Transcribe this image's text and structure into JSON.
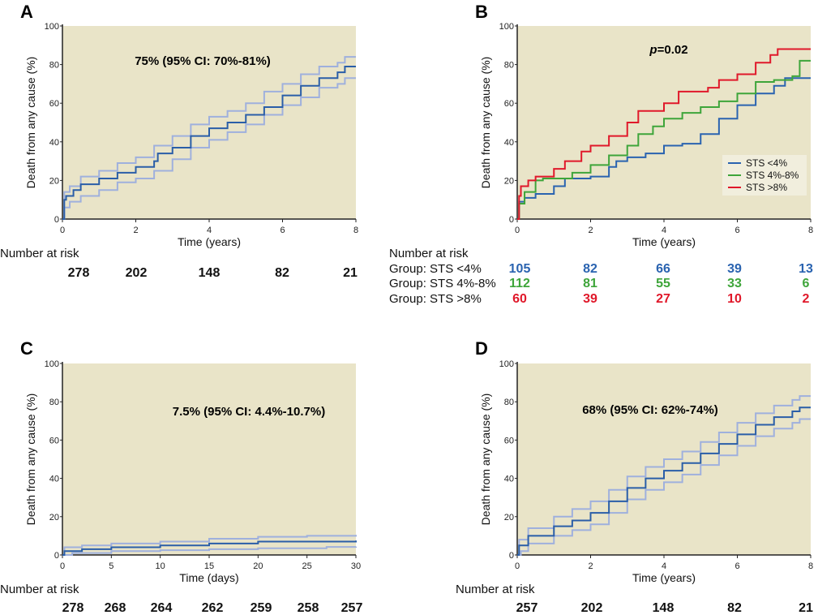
{
  "colors": {
    "background": "#e9e4c8",
    "main": "#2a5ea8",
    "ci": "#9fb0dd",
    "blue": "#2a63b0",
    "green": "#3ea53a",
    "red": "#e0182a"
  },
  "chart_data": [
    {
      "panel": "A",
      "type": "line",
      "annotation": "75% (95% CI: 70%-81%)",
      "xlabel": "Time (years)",
      "ylabel": "Death from any cause (%)",
      "xlim": [
        0,
        8
      ],
      "ylim": [
        0,
        100
      ],
      "xticks": [
        0,
        2,
        4,
        6,
        8
      ],
      "yticks": [
        0,
        20,
        40,
        60,
        80,
        100
      ],
      "series": [
        {
          "name": "Upper 95% CI",
          "color": "ci",
          "points": [
            [
              0,
              0
            ],
            [
              0.05,
              14
            ],
            [
              0.2,
              17
            ],
            [
              0.5,
              22
            ],
            [
              1,
              25
            ],
            [
              1.5,
              29
            ],
            [
              2,
              32
            ],
            [
              2.5,
              38
            ],
            [
              3,
              43
            ],
            [
              3.5,
              49
            ],
            [
              4,
              53
            ],
            [
              4.5,
              56
            ],
            [
              5,
              60
            ],
            [
              5.5,
              66
            ],
            [
              6,
              70
            ],
            [
              6.5,
              75
            ],
            [
              7,
              79
            ],
            [
              7.5,
              81
            ],
            [
              7.7,
              84
            ],
            [
              8,
              84
            ]
          ]
        },
        {
          "name": "Lower 95% CI",
          "color": "ci",
          "points": [
            [
              0,
              0
            ],
            [
              0.05,
              6
            ],
            [
              0.2,
              9
            ],
            [
              0.5,
              12
            ],
            [
              1,
              15
            ],
            [
              1.5,
              19
            ],
            [
              2,
              21
            ],
            [
              2.5,
              25
            ],
            [
              3,
              31
            ],
            [
              3.5,
              37
            ],
            [
              4,
              41
            ],
            [
              4.5,
              45
            ],
            [
              5,
              49
            ],
            [
              5.5,
              54
            ],
            [
              6,
              59
            ],
            [
              6.5,
              63
            ],
            [
              7,
              68
            ],
            [
              7.5,
              70
            ],
            [
              7.7,
              73
            ],
            [
              8,
              73
            ]
          ]
        },
        {
          "name": "Estimate",
          "color": "main",
          "points": [
            [
              0,
              0
            ],
            [
              0.05,
              10
            ],
            [
              0.1,
              12
            ],
            [
              0.3,
              15
            ],
            [
              0.5,
              18
            ],
            [
              1,
              21
            ],
            [
              1.5,
              24
            ],
            [
              2,
              27
            ],
            [
              2.5,
              30
            ],
            [
              2.6,
              34
            ],
            [
              3,
              37
            ],
            [
              3.5,
              43
            ],
            [
              4,
              47
            ],
            [
              4.5,
              50
            ],
            [
              5,
              54
            ],
            [
              5.5,
              58
            ],
            [
              6,
              64
            ],
            [
              6.5,
              69
            ],
            [
              7,
              73
            ],
            [
              7.5,
              76
            ],
            [
              7.7,
              79
            ],
            [
              8,
              79
            ]
          ]
        }
      ],
      "risk_title": "Number at risk",
      "risk_rows": [
        {
          "label": "",
          "color": "#111111",
          "values": [
            "278",
            "202",
            "148",
            "82",
            "21"
          ]
        }
      ]
    },
    {
      "panel": "B",
      "type": "line",
      "annotation_italic": "p",
      "annotation": "=0.02",
      "xlabel": "Time (years)",
      "ylabel": "Death from any cause (%)",
      "xlim": [
        0,
        8
      ],
      "ylim": [
        0,
        100
      ],
      "xticks": [
        0,
        2,
        4,
        6,
        8
      ],
      "yticks": [
        0,
        20,
        40,
        60,
        80,
        100
      ],
      "legend_position": "bottom-right",
      "series": [
        {
          "name": "STS <4%",
          "color": "blue",
          "points": [
            [
              0,
              0
            ],
            [
              0.05,
              9
            ],
            [
              0.2,
              11
            ],
            [
              0.5,
              13
            ],
            [
              1,
              17
            ],
            [
              1.3,
              21
            ],
            [
              2,
              22
            ],
            [
              2.5,
              27
            ],
            [
              2.7,
              30
            ],
            [
              3,
              32
            ],
            [
              3.5,
              34
            ],
            [
              4,
              38
            ],
            [
              4.5,
              39
            ],
            [
              5,
              44
            ],
            [
              5.5,
              52
            ],
            [
              6,
              59
            ],
            [
              6.5,
              65
            ],
            [
              7,
              69
            ],
            [
              7.3,
              73
            ],
            [
              8,
              73
            ]
          ]
        },
        {
          "name": "STS 4%-8%",
          "color": "green",
          "points": [
            [
              0,
              0
            ],
            [
              0.05,
              8
            ],
            [
              0.2,
              14
            ],
            [
              0.5,
              20
            ],
            [
              0.7,
              21
            ],
            [
              1.5,
              24
            ],
            [
              2,
              28
            ],
            [
              2.5,
              33
            ],
            [
              3,
              38
            ],
            [
              3.3,
              44
            ],
            [
              3.7,
              48
            ],
            [
              4,
              52
            ],
            [
              4.5,
              55
            ],
            [
              5,
              58
            ],
            [
              5.5,
              61
            ],
            [
              6,
              65
            ],
            [
              6.5,
              71
            ],
            [
              7,
              72
            ],
            [
              7.5,
              74
            ],
            [
              7.7,
              82
            ],
            [
              8,
              82
            ]
          ]
        },
        {
          "name": "STS >8%",
          "color": "red",
          "points": [
            [
              0,
              0
            ],
            [
              0.05,
              12
            ],
            [
              0.1,
              17
            ],
            [
              0.3,
              20
            ],
            [
              0.5,
              22
            ],
            [
              1,
              26
            ],
            [
              1.3,
              30
            ],
            [
              1.75,
              35
            ],
            [
              2,
              38
            ],
            [
              2.5,
              43
            ],
            [
              3,
              50
            ],
            [
              3.3,
              56
            ],
            [
              4,
              60
            ],
            [
              4.4,
              66
            ],
            [
              5.2,
              68
            ],
            [
              5.5,
              72
            ],
            [
              6,
              75
            ],
            [
              6.5,
              81
            ],
            [
              6.9,
              85
            ],
            [
              7.1,
              88
            ],
            [
              8,
              88
            ]
          ]
        }
      ],
      "risk_title": "Number at risk",
      "risk_rows": [
        {
          "label": "Group: STS <4%",
          "color": "#2a63b0",
          "values": [
            "105",
            "82",
            "66",
            "39",
            "13"
          ]
        },
        {
          "label": "Group: STS 4%-8%",
          "color": "#3ea53a",
          "values": [
            "112",
            "81",
            "55",
            "33",
            "6"
          ]
        },
        {
          "label": "Group: STS >8%",
          "color": "#e0182a",
          "values": [
            "60",
            "39",
            "27",
            "10",
            "2"
          ]
        }
      ]
    },
    {
      "panel": "C",
      "type": "line",
      "annotation": "7.5% (95% CI: 4.4%-10.7%)",
      "xlabel": "Time (days)",
      "ylabel": "Death from any cause (%)",
      "xlim": [
        0,
        30
      ],
      "ylim": [
        0,
        100
      ],
      "xticks": [
        0,
        5,
        10,
        15,
        20,
        25,
        30
      ],
      "yticks": [
        0,
        20,
        40,
        60,
        80,
        100
      ],
      "series": [
        {
          "name": "Upper 95% CI",
          "color": "ci",
          "points": [
            [
              0,
              0
            ],
            [
              0.2,
              4
            ],
            [
              2,
              5
            ],
            [
              5,
              6
            ],
            [
              10,
              7
            ],
            [
              15,
              8.5
            ],
            [
              20,
              9.5
            ],
            [
              25,
              10
            ],
            [
              30,
              10.5
            ]
          ]
        },
        {
          "name": "Lower 95% CI",
          "color": "ci",
          "points": [
            [
              0,
              0
            ],
            [
              1,
              1
            ],
            [
              5,
              2
            ],
            [
              10,
              2.5
            ],
            [
              15,
              3
            ],
            [
              20,
              3.5
            ],
            [
              27,
              4.2
            ],
            [
              30,
              4.4
            ]
          ]
        },
        {
          "name": "Estimate",
          "color": "main",
          "points": [
            [
              0,
              0
            ],
            [
              0.2,
              2
            ],
            [
              2,
              3
            ],
            [
              5,
              4
            ],
            [
              10,
              5
            ],
            [
              15,
              6
            ],
            [
              20,
              7
            ],
            [
              30,
              7.5
            ]
          ]
        }
      ],
      "risk_title": "Number at risk",
      "risk_rows": [
        {
          "label": "",
          "color": "#111111",
          "values": [
            "278",
            "268",
            "264",
            "262",
            "259",
            "258",
            "257"
          ]
        }
      ]
    },
    {
      "panel": "D",
      "type": "line",
      "annotation": "68% (95% CI: 62%-74%)",
      "xlabel": "Time (years)",
      "ylabel": "Death from any cause (%)",
      "xlim": [
        0,
        8
      ],
      "ylim": [
        0,
        100
      ],
      "xticks": [
        0,
        2,
        4,
        6,
        8
      ],
      "yticks": [
        0,
        20,
        40,
        60,
        80,
        100
      ],
      "series": [
        {
          "name": "Upper 95% CI",
          "color": "ci",
          "points": [
            [
              0,
              0
            ],
            [
              0.05,
              8
            ],
            [
              0.3,
              14
            ],
            [
              1,
              20
            ],
            [
              1.5,
              24
            ],
            [
              2,
              28
            ],
            [
              2.5,
              34
            ],
            [
              3,
              41
            ],
            [
              3.5,
              46
            ],
            [
              4,
              50
            ],
            [
              4.5,
              54
            ],
            [
              5,
              59
            ],
            [
              5.5,
              64
            ],
            [
              6,
              69
            ],
            [
              6.5,
              74
            ],
            [
              7,
              78
            ],
            [
              7.5,
              81
            ],
            [
              7.7,
              83
            ],
            [
              8,
              83
            ]
          ]
        },
        {
          "name": "Lower 95% CI",
          "color": "ci",
          "points": [
            [
              0,
              0
            ],
            [
              0.1,
              2
            ],
            [
              0.3,
              6
            ],
            [
              1,
              10
            ],
            [
              1.5,
              13
            ],
            [
              2,
              16
            ],
            [
              2.5,
              22
            ],
            [
              3,
              29
            ],
            [
              3.5,
              34
            ],
            [
              4,
              38
            ],
            [
              4.5,
              42
            ],
            [
              5,
              47
            ],
            [
              5.5,
              52
            ],
            [
              6,
              57
            ],
            [
              6.5,
              62
            ],
            [
              7,
              66
            ],
            [
              7.5,
              69
            ],
            [
              7.7,
              71
            ],
            [
              8,
              71
            ]
          ]
        },
        {
          "name": "Estimate",
          "color": "main",
          "points": [
            [
              0,
              0
            ],
            [
              0.05,
              5
            ],
            [
              0.3,
              10
            ],
            [
              1,
              15
            ],
            [
              1.5,
              18
            ],
            [
              2,
              22
            ],
            [
              2.5,
              28
            ],
            [
              3,
              35
            ],
            [
              3.5,
              40
            ],
            [
              4,
              44
            ],
            [
              4.5,
              48
            ],
            [
              5,
              53
            ],
            [
              5.5,
              58
            ],
            [
              6,
              63
            ],
            [
              6.5,
              68
            ],
            [
              7,
              72
            ],
            [
              7.5,
              75
            ],
            [
              7.7,
              77
            ],
            [
              8,
              77
            ]
          ]
        }
      ],
      "risk_title": "Number at risk",
      "risk_rows": [
        {
          "label": "",
          "color": "#111111",
          "values": [
            "257",
            "202",
            "148",
            "82",
            "21"
          ]
        }
      ]
    }
  ]
}
